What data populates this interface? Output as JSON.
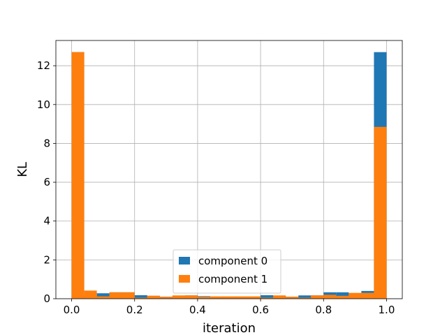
{
  "chart_data": {
    "type": "bar",
    "title": "",
    "xlabel": "iteration",
    "ylabel": "KL",
    "xlim": [
      -0.05,
      1.05
    ],
    "ylim": [
      0,
      13.3
    ],
    "xticks": [
      "0.0",
      "0.2",
      "0.4",
      "0.6",
      "0.8",
      "1.0"
    ],
    "yticks": [
      "0",
      "2",
      "4",
      "6",
      "8",
      "10",
      "12"
    ],
    "grid": true,
    "legend_position": "lower center",
    "bin_edges": [
      0.0,
      0.04,
      0.08,
      0.12,
      0.16,
      0.2,
      0.24,
      0.28,
      0.32,
      0.36,
      0.4,
      0.44,
      0.48,
      0.52,
      0.56,
      0.6,
      0.64,
      0.68,
      0.72,
      0.76,
      0.8,
      0.84,
      0.88,
      0.92,
      0.96,
      1.0
    ],
    "series": [
      {
        "name": "component 0",
        "color": "#1f77b4",
        "values": [
          12.7,
          0.15,
          0.28,
          0.33,
          0.33,
          0.18,
          0.15,
          0.1,
          0.12,
          0.17,
          0.13,
          0.1,
          0.1,
          0.1,
          0.1,
          0.18,
          0.15,
          0.1,
          0.17,
          0.17,
          0.33,
          0.33,
          0.25,
          0.4,
          12.7
        ]
      },
      {
        "name": "component 1",
        "color": "#ff7f0e",
        "values": [
          12.7,
          0.42,
          0.12,
          0.33,
          0.33,
          0.05,
          0.15,
          0.1,
          0.17,
          0.17,
          0.1,
          0.12,
          0.12,
          0.12,
          0.12,
          0.05,
          0.17,
          0.1,
          0.05,
          0.17,
          0.2,
          0.15,
          0.3,
          0.3,
          8.85
        ]
      }
    ]
  }
}
